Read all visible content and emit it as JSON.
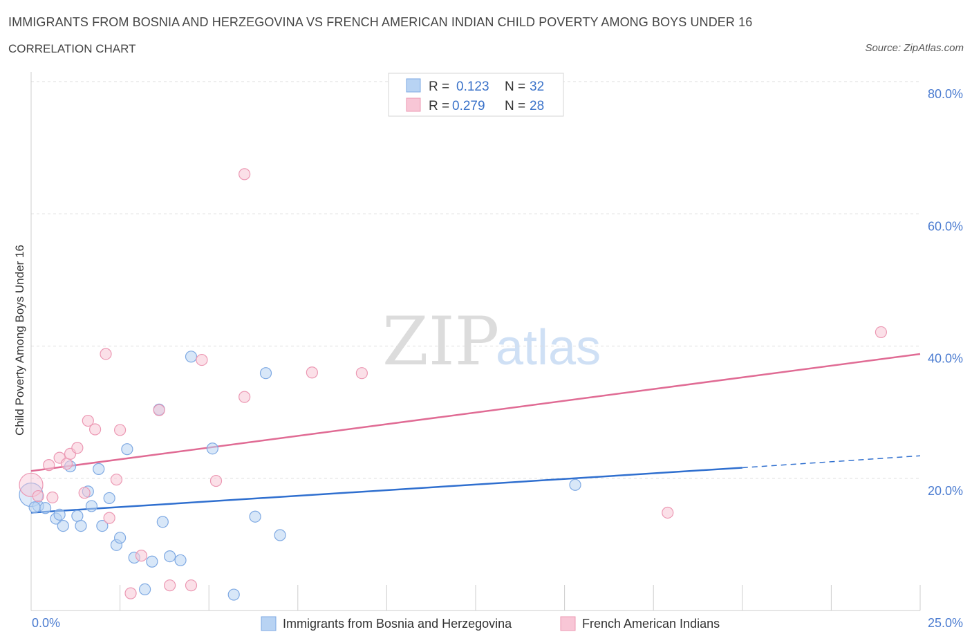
{
  "header": {
    "title": "IMMIGRANTS FROM BOSNIA AND HERZEGOVINA VS FRENCH AMERICAN INDIAN CHILD POVERTY AMONG BOYS UNDER 16",
    "subtitle": "CORRELATION CHART",
    "source": "Source: ZipAtlas.com"
  },
  "watermark": {
    "zip": "ZIP",
    "atlas": "atlas"
  },
  "legend": {
    "rows": [
      {
        "r_label": "R =",
        "r_value": "0.123",
        "n_label": "N =",
        "n_value": "32"
      },
      {
        "r_label": "R =",
        "r_value": "0.279",
        "n_label": "N =",
        "n_value": "28"
      }
    ]
  },
  "colors": {
    "blue_fill": "#b8d3f3",
    "blue_stroke": "#7ea9e3",
    "blue_line": "#2f6fcf",
    "pink_fill": "#f8c6d6",
    "pink_stroke": "#ec98b3",
    "pink_line": "#e06b94",
    "grid": "#dddddd",
    "tick_text": "#4a7bd0"
  },
  "chart_data": {
    "type": "scatter",
    "title": "IMMIGRANTS FROM BOSNIA AND HERZEGOVINA VS FRENCH AMERICAN INDIAN CHILD POVERTY AMONG BOYS UNDER 16",
    "xlabel": "",
    "ylabel": "Child Poverty Among Boys Under 16",
    "xlim": [
      0,
      25
    ],
    "ylim": [
      0,
      80
    ],
    "x_tick_labels": [
      "0.0%",
      "25.0%"
    ],
    "y_tick_values": [
      20,
      40,
      60,
      80
    ],
    "y_tick_labels": [
      "20.0%",
      "40.0%",
      "60.0%",
      "80.0%"
    ],
    "legend_position": "top-center",
    "series": [
      {
        "name": "Immigrants from Bosnia and Herzegovina",
        "color": "blue",
        "R": 0.123,
        "N": 32,
        "points": [
          [
            0.0,
            17.5
          ],
          [
            0.2,
            15.8
          ],
          [
            0.4,
            15.5
          ],
          [
            0.7,
            13.9
          ],
          [
            0.8,
            14.5
          ],
          [
            0.9,
            12.8
          ],
          [
            1.1,
            21.8
          ],
          [
            1.3,
            14.3
          ],
          [
            1.4,
            12.8
          ],
          [
            1.6,
            18.0
          ],
          [
            1.7,
            15.8
          ],
          [
            1.9,
            21.4
          ],
          [
            2.0,
            12.8
          ],
          [
            2.2,
            17.0
          ],
          [
            2.4,
            9.9
          ],
          [
            2.5,
            11.0
          ],
          [
            2.7,
            24.4
          ],
          [
            2.9,
            8.0
          ],
          [
            3.2,
            3.2
          ],
          [
            3.4,
            7.4
          ],
          [
            3.6,
            30.4
          ],
          [
            3.7,
            13.4
          ],
          [
            3.9,
            8.2
          ],
          [
            4.2,
            7.6
          ],
          [
            4.5,
            38.4
          ],
          [
            5.1,
            24.5
          ],
          [
            5.7,
            2.4
          ],
          [
            6.3,
            14.2
          ],
          [
            6.6,
            35.9
          ],
          [
            7.0,
            11.4
          ],
          [
            15.3,
            19.0
          ],
          [
            0.1,
            15.6
          ]
        ]
      },
      {
        "name": "French American Indians",
        "color": "pink",
        "R": 0.279,
        "N": 28,
        "points": [
          [
            0.0,
            19.0
          ],
          [
            0.2,
            17.3
          ],
          [
            0.5,
            22.0
          ],
          [
            0.6,
            17.1
          ],
          [
            0.8,
            23.1
          ],
          [
            1.0,
            22.2
          ],
          [
            1.1,
            23.7
          ],
          [
            1.3,
            24.6
          ],
          [
            1.5,
            17.8
          ],
          [
            1.6,
            28.7
          ],
          [
            1.8,
            27.4
          ],
          [
            2.1,
            38.8
          ],
          [
            2.2,
            14.0
          ],
          [
            2.4,
            19.8
          ],
          [
            2.5,
            27.3
          ],
          [
            2.8,
            2.6
          ],
          [
            3.1,
            8.3
          ],
          [
            3.6,
            30.3
          ],
          [
            3.9,
            3.8
          ],
          [
            4.5,
            3.8
          ],
          [
            4.8,
            37.9
          ],
          [
            5.2,
            19.6
          ],
          [
            6.0,
            66.0
          ],
          [
            6.0,
            32.3
          ],
          [
            7.9,
            36.0
          ],
          [
            9.3,
            35.9
          ],
          [
            17.9,
            14.8
          ],
          [
            23.9,
            42.1
          ]
        ]
      }
    ],
    "trend_lines": [
      {
        "series": "Immigrants from Bosnia and Herzegovina",
        "x0": 0,
        "y0": 14.8,
        "x1": 20,
        "y1": 21.6,
        "dashed_to_x": 25,
        "dashed_to_y": 23.4
      },
      {
        "series": "French American Indians",
        "x0": 0,
        "y0": 21.1,
        "x1": 25,
        "y1": 38.8
      }
    ]
  }
}
